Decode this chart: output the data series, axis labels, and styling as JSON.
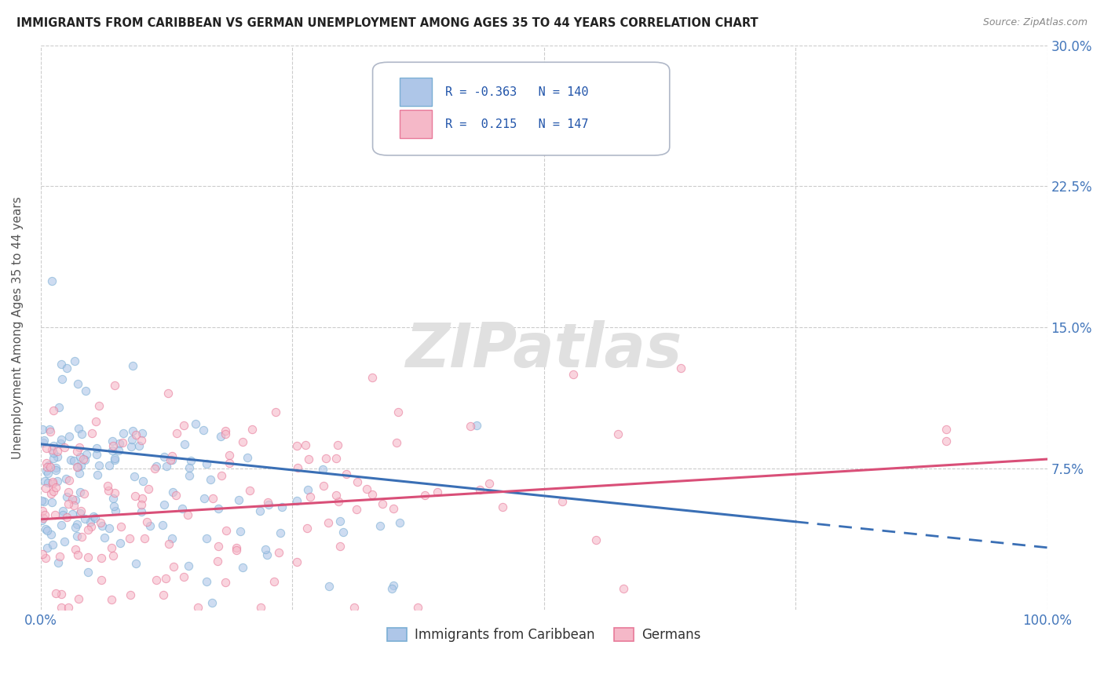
{
  "title": "IMMIGRANTS FROM CARIBBEAN VS GERMAN UNEMPLOYMENT AMONG AGES 35 TO 44 YEARS CORRELATION CHART",
  "source_text": "Source: ZipAtlas.com",
  "ylabel": "Unemployment Among Ages 35 to 44 years",
  "xlim": [
    0.0,
    1.0
  ],
  "ylim": [
    0.0,
    0.3
  ],
  "yticks": [
    0.0,
    0.075,
    0.15,
    0.225,
    0.3
  ],
  "ytick_labels": [
    "",
    "7.5%",
    "15.0%",
    "22.5%",
    "30.0%"
  ],
  "xticks": [
    0.0,
    0.25,
    0.5,
    0.75,
    1.0
  ],
  "xtick_labels": [
    "0.0%",
    "",
    "",
    "",
    "100.0%"
  ],
  "series1_name": "Immigrants from Caribbean",
  "series1_R": -0.363,
  "series1_N": 140,
  "series1_facecolor": "#aec6e8",
  "series1_edgecolor": "#7bafd4",
  "series1_line_color": "#3a6fb5",
  "series2_name": "Germans",
  "series2_R": 0.215,
  "series2_N": 147,
  "series2_facecolor": "#f5b8c8",
  "series2_edgecolor": "#e87a9a",
  "series2_line_color": "#d94f78",
  "background_color": "#ffffff",
  "grid_color": "#cccccc",
  "title_color": "#222222",
  "axis_label_color": "#555555",
  "tick_label_color": "#4477bb",
  "watermark_text": "ZIPatlas",
  "watermark_color": "#e0e0e0",
  "seed": 42
}
